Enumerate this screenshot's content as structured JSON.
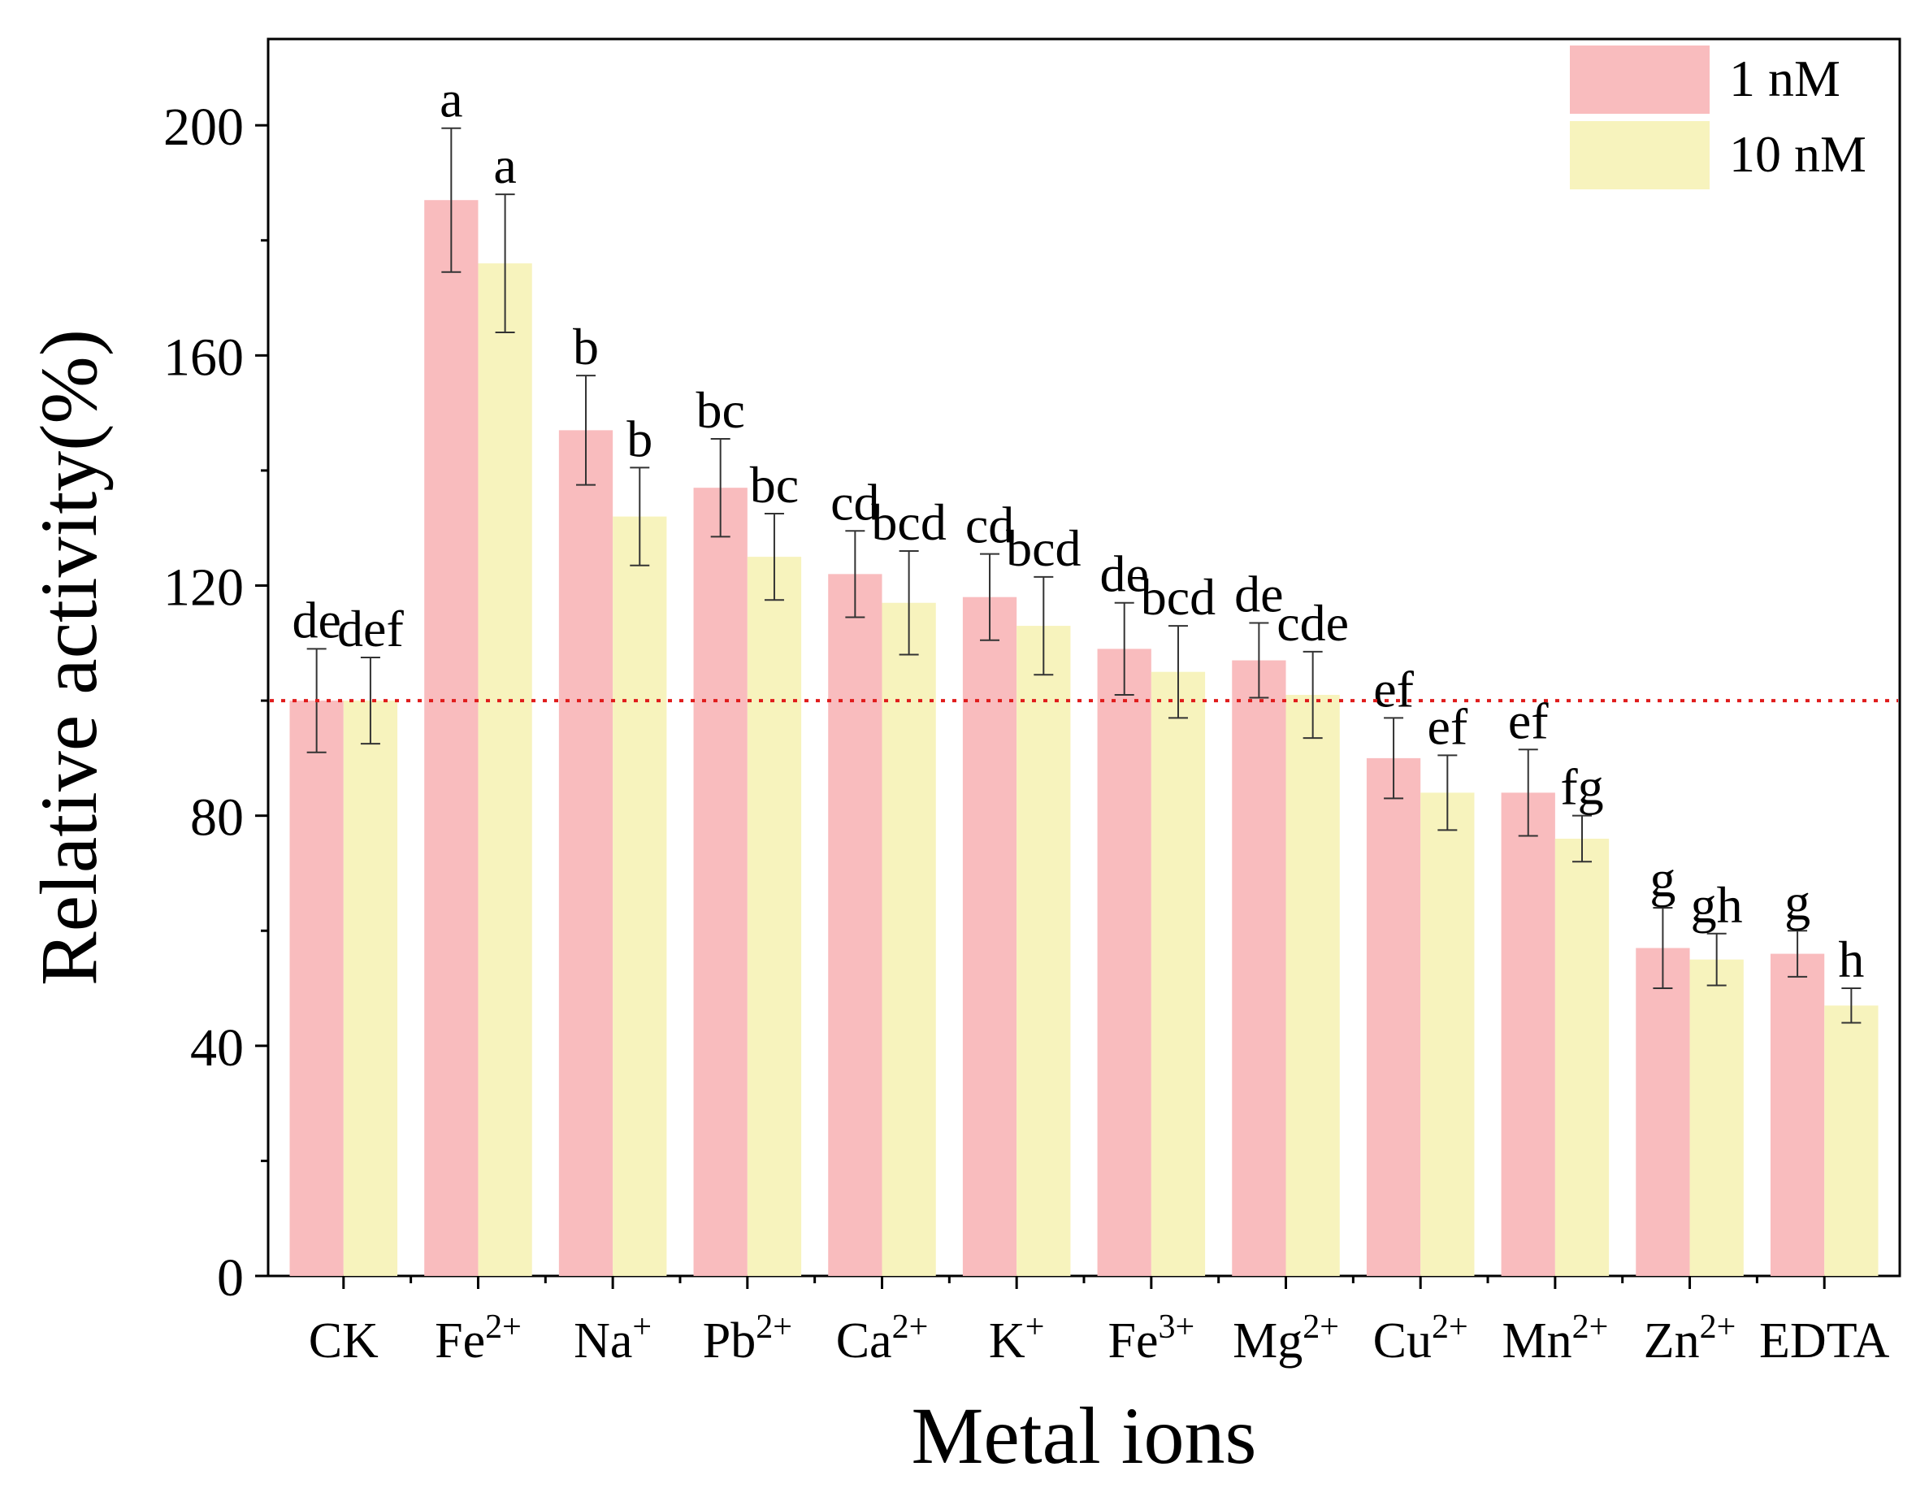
{
  "chart_data": {
    "type": "bar",
    "title": "",
    "xlabel": "Metal ions",
    "ylabel": "Relative activity(%)",
    "ylim": [
      0,
      215
    ],
    "yticks": [
      0,
      40,
      80,
      120,
      160,
      200
    ],
    "grid": false,
    "legend_position": "top-right",
    "categories": [
      {
        "base": "CK",
        "sup": ""
      },
      {
        "base": "Fe",
        "sup": "2+"
      },
      {
        "base": "Na",
        "sup": "+"
      },
      {
        "base": "Pb",
        "sup": "2+"
      },
      {
        "base": "Ca",
        "sup": "2+"
      },
      {
        "base": "K",
        "sup": "+"
      },
      {
        "base": "Fe",
        "sup": "3+"
      },
      {
        "base": "Mg",
        "sup": "2+"
      },
      {
        "base": "Cu",
        "sup": "2+"
      },
      {
        "base": "Mn",
        "sup": "2+"
      },
      {
        "base": "Zn",
        "sup": "2+"
      },
      {
        "base": "EDTA",
        "sup": ""
      }
    ],
    "series": [
      {
        "name": "1 nM",
        "color": "#f9bcbe",
        "values": [
          100,
          187,
          147,
          137,
          122,
          118,
          109,
          107,
          90,
          84,
          57,
          56
        ],
        "errors": [
          9,
          12.5,
          9.5,
          8.5,
          7.5,
          7.5,
          8,
          6.5,
          7,
          7.5,
          7,
          4
        ],
        "labels": [
          "de",
          "a",
          "b",
          "bc",
          "cd",
          "cd",
          "de",
          "de",
          "ef",
          "ef",
          "g",
          "g"
        ]
      },
      {
        "name": "10 nM",
        "color": "#f7f3bd",
        "values": [
          100,
          176,
          132,
          125,
          117,
          113,
          105,
          101,
          84,
          76,
          55,
          47
        ],
        "errors": [
          7.5,
          12,
          8.5,
          7.5,
          9,
          8.5,
          8,
          7.5,
          6.5,
          4,
          4.5,
          3
        ],
        "labels": [
          "def",
          "a",
          "b",
          "bc",
          "bcd",
          "bcd",
          "bcd",
          "cde",
          "ef",
          "fg",
          "gh",
          "h"
        ]
      }
    ],
    "reference_line": {
      "y": 100,
      "color": "#e01b1b",
      "style": "dotted"
    }
  }
}
